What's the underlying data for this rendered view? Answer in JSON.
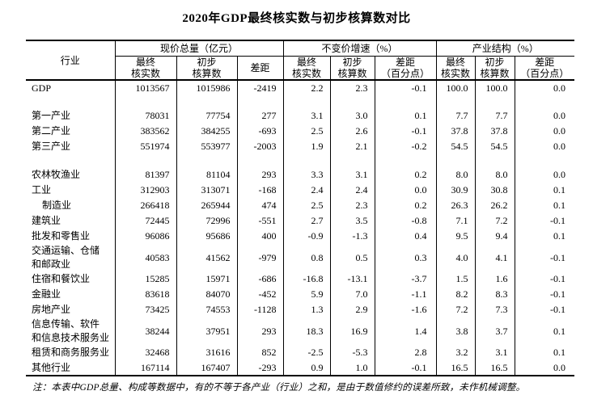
{
  "title": "2020年GDP最终核实数与初步核算数对比",
  "table": {
    "industry_header": "行业",
    "groups": [
      {
        "label": "现价总量（亿元）",
        "cols": [
          "最终\n核实数",
          "初步\n核算数",
          "差距"
        ]
      },
      {
        "label": "不变价增速（%）",
        "cols": [
          "最终\n核实数",
          "初步\n核算数",
          "差距\n（百分点）"
        ]
      },
      {
        "label": "产业结构（%）",
        "cols": [
          "最终\n核实数",
          "初步\n核算数",
          "差距\n（百分点）"
        ]
      }
    ],
    "rows": [
      {
        "label": "GDP",
        "values": [
          "1013567",
          "1015986",
          "-2419",
          "2.2",
          "2.3",
          "-0.1",
          "100.0",
          "100.0",
          "0.0"
        ]
      },
      {
        "spacer": true
      },
      {
        "label": "第一产业",
        "values": [
          "78031",
          "77754",
          "277",
          "3.1",
          "3.0",
          "0.1",
          "7.7",
          "7.7",
          "0.0"
        ]
      },
      {
        "label": "第二产业",
        "values": [
          "383562",
          "384255",
          "-693",
          "2.5",
          "2.6",
          "-0.1",
          "37.8",
          "37.8",
          "0.0"
        ]
      },
      {
        "label": "第三产业",
        "values": [
          "551974",
          "553977",
          "-2003",
          "1.9",
          "2.1",
          "-0.2",
          "54.5",
          "54.5",
          "0.0"
        ]
      },
      {
        "spacer": true
      },
      {
        "label": "农林牧渔业",
        "values": [
          "81397",
          "81104",
          "293",
          "3.3",
          "3.1",
          "0.2",
          "8.0",
          "8.0",
          "0.0"
        ]
      },
      {
        "label": "工业",
        "values": [
          "312903",
          "313071",
          "-168",
          "2.4",
          "2.4",
          "0.0",
          "30.9",
          "30.8",
          "0.1"
        ]
      },
      {
        "label": "制造业",
        "indent": true,
        "values": [
          "266418",
          "265944",
          "474",
          "2.5",
          "2.3",
          "0.2",
          "26.3",
          "26.2",
          "0.1"
        ]
      },
      {
        "label": "建筑业",
        "values": [
          "72445",
          "72996",
          "-551",
          "2.7",
          "3.5",
          "-0.8",
          "7.1",
          "7.2",
          "-0.1"
        ]
      },
      {
        "label": "批发和零售业",
        "values": [
          "96086",
          "95686",
          "400",
          "-0.9",
          "-1.3",
          "0.4",
          "9.5",
          "9.4",
          "0.1"
        ]
      },
      {
        "label": "交通运输、仓储\n和邮政业",
        "twoline": true,
        "values": [
          "40583",
          "41562",
          "-979",
          "0.8",
          "0.5",
          "0.3",
          "4.0",
          "4.1",
          "-0.1"
        ]
      },
      {
        "label": "住宿和餐饮业",
        "values": [
          "15285",
          "15971",
          "-686",
          "-16.8",
          "-13.1",
          "-3.7",
          "1.5",
          "1.6",
          "-0.1"
        ]
      },
      {
        "label": "金融业",
        "values": [
          "83618",
          "84070",
          "-452",
          "5.9",
          "7.0",
          "-1.1",
          "8.2",
          "8.3",
          "-0.1"
        ]
      },
      {
        "label": "房地产业",
        "values": [
          "73425",
          "74553",
          "-1128",
          "1.3",
          "2.9",
          "-1.6",
          "7.2",
          "7.3",
          "-0.1"
        ]
      },
      {
        "label": "信息传输、软件\n和信息技术服务业",
        "twoline": true,
        "values": [
          "38244",
          "37951",
          "293",
          "18.3",
          "16.9",
          "1.4",
          "3.8",
          "3.7",
          "0.1"
        ]
      },
      {
        "label": "租赁和商务服务业",
        "values": [
          "32468",
          "31616",
          "852",
          "-2.5",
          "-5.3",
          "2.8",
          "3.2",
          "3.1",
          "0.1"
        ]
      },
      {
        "label": "其他行业",
        "values": [
          "167114",
          "167407",
          "-293",
          "0.9",
          "1.0",
          "-0.1",
          "16.5",
          "16.5",
          "0.0"
        ]
      }
    ]
  },
  "note": "注：本表中GDP总量、构成等数据中，有的不等于各产业（行业）之和，是由于数值修约的误差所致，未作机械调整。"
}
